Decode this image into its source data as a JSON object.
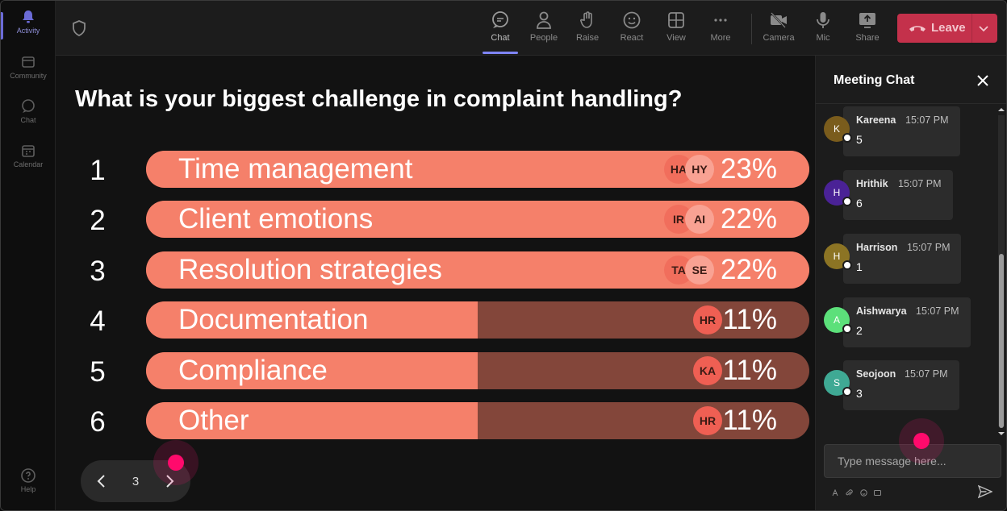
{
  "rail": {
    "items": [
      {
        "label": "Activity",
        "icon": "bell-icon"
      },
      {
        "label": "Community",
        "icon": "community-icon"
      },
      {
        "label": "Chat",
        "icon": "chat-icon"
      },
      {
        "label": "Calendar",
        "icon": "calendar-icon"
      }
    ],
    "help": "Help"
  },
  "toolbar": {
    "chat": "Chat",
    "people": "People",
    "raise": "Raise",
    "react": "React",
    "view": "View",
    "more": "More",
    "camera": "Camera",
    "mic": "Mic",
    "share": "Share",
    "leave": "Leave"
  },
  "poll": {
    "question": "What is your biggest challenge in complaint handling?",
    "options": [
      {
        "num": "1",
        "label": "Time management",
        "percent": "23%",
        "fill": 1.0,
        "avatars": [
          "HA",
          "HY"
        ]
      },
      {
        "num": "2",
        "label": "Client emotions",
        "percent": "22%",
        "fill": 1.0,
        "avatars": [
          "IR",
          "AI"
        ]
      },
      {
        "num": "3",
        "label": "Resolution strategies",
        "percent": "22%",
        "fill": 1.0,
        "avatars": [
          "TA",
          "SE"
        ]
      },
      {
        "num": "4",
        "label": "Documentation",
        "percent": "11%",
        "fill": 0.5,
        "avatars": [
          "HR"
        ]
      },
      {
        "num": "5",
        "label": "Compliance",
        "percent": "11%",
        "fill": 0.5,
        "avatars": [
          "KA"
        ]
      },
      {
        "num": "6",
        "label": "Other",
        "percent": "11%",
        "fill": 0.5,
        "avatars": [
          "HR"
        ]
      }
    ],
    "page": "3"
  },
  "chat": {
    "title": "Meeting Chat",
    "messages": [
      {
        "initial": "K",
        "sender": "Kareena",
        "time": "15:07 PM",
        "text": "5",
        "color": "#7a5c1c"
      },
      {
        "initial": "H",
        "sender": "Hrithik",
        "time": "15:07 PM",
        "text": "6",
        "color": "#4a2296"
      },
      {
        "initial": "H",
        "sender": "Harrison",
        "time": "15:07 PM",
        "text": "1",
        "color": "#8c7424"
      },
      {
        "initial": "A",
        "sender": "Aishwarya",
        "time": "15:07 PM",
        "text": "2",
        "color": "#5ce07a"
      },
      {
        "initial": "S",
        "sender": "Seojoon",
        "time": "15:07 PM",
        "text": "3",
        "color": "#3fa994"
      }
    ],
    "placeholder": "Type message here..."
  },
  "colors": {
    "bar_fill": "#f5806a",
    "bar_track": "#83463a",
    "leave": "#c4314b",
    "accent": "#7f85f5"
  }
}
